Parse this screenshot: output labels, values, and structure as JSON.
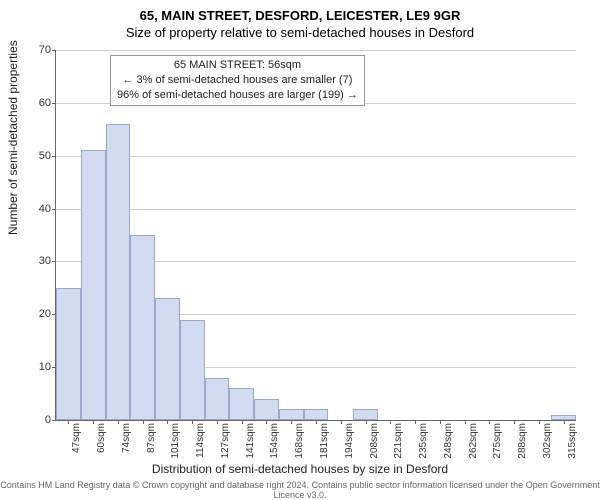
{
  "header": {
    "title": "65, MAIN STREET, DESFORD, LEICESTER, LE9 9GR",
    "subtitle": "Size of property relative to semi-detached houses in Desford"
  },
  "axes": {
    "xlabel": "Distribution of semi-detached houses by size in Desford",
    "ylabel": "Number of semi-detached properties",
    "ylim": [
      0,
      70
    ],
    "ytick_step": 10,
    "yticks": [
      0,
      10,
      20,
      30,
      40,
      50,
      60,
      70
    ],
    "grid_color": "#c0c0c0",
    "axis_color": "#666666"
  },
  "chart": {
    "type": "histogram",
    "bar_color": "#d2dbef",
    "bar_border_color": "#9aa8c9",
    "background_color": "#ffffff",
    "bar_width_ratio": 1.0,
    "categories": [
      "47sqm",
      "60sqm",
      "74sqm",
      "87sqm",
      "101sqm",
      "114sqm",
      "127sqm",
      "141sqm",
      "154sqm",
      "168sqm",
      "181sqm",
      "194sqm",
      "208sqm",
      "221sqm",
      "235sqm",
      "248sqm",
      "262sqm",
      "275sqm",
      "288sqm",
      "302sqm",
      "315sqm"
    ],
    "values": [
      25,
      51,
      56,
      35,
      23,
      19,
      8,
      6,
      4,
      2,
      2,
      0,
      2,
      0,
      0,
      0,
      0,
      0,
      0,
      0,
      1
    ]
  },
  "annotation": {
    "line1": "65 MAIN STREET: 56sqm",
    "line2": "← 3% of semi-detached houses are smaller (7)",
    "line3": "96% of semi-detached houses are larger (199) →"
  },
  "footer": {
    "line1": "Contains HM Land Registry data © Crown copyright and database right 2024.",
    "line2": "Contains public sector information licensed under the Open Government Licence v3.0."
  },
  "typography": {
    "title_fontsize": 13,
    "subtitle_fontsize": 13,
    "label_fontsize": 12,
    "tick_fontsize": 11,
    "annot_fontsize": 11,
    "footer_fontsize": 9
  }
}
